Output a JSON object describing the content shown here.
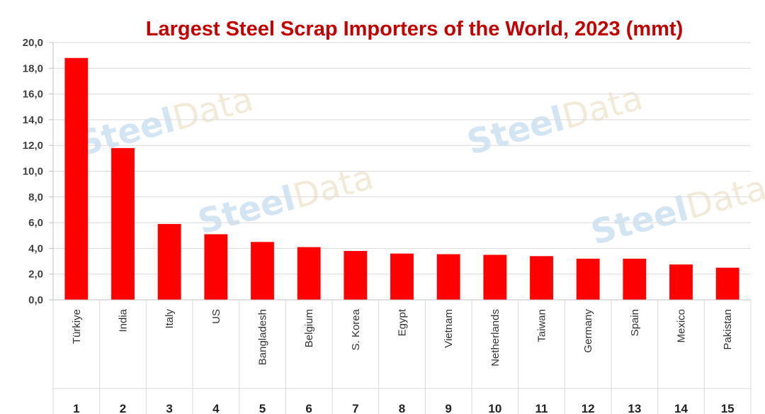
{
  "chart_data": {
    "type": "bar",
    "title": "Largest Steel Scrap Importers of the World, 2023 (mmt)",
    "categories": [
      "Türkiye",
      "India",
      "Italy",
      "US",
      "Bangladesh",
      "Belgium",
      "S. Korea",
      "Egypt",
      "Vietnam",
      "Netherlands",
      "Taiwan",
      "Germany",
      "Spain",
      "Mexico",
      "Pakistan"
    ],
    "ranks": [
      "1",
      "2",
      "3",
      "4",
      "5",
      "6",
      "7",
      "8",
      "9",
      "10",
      "11",
      "12",
      "13",
      "14",
      "15"
    ],
    "values": [
      18.8,
      11.8,
      5.9,
      5.1,
      4.5,
      4.1,
      3.8,
      3.6,
      3.55,
      3.5,
      3.4,
      3.2,
      3.2,
      2.75,
      2.5
    ],
    "ylim": [
      0,
      20
    ],
    "yticks": [
      "0,0",
      "2,0",
      "4,0",
      "6,0",
      "8,0",
      "10,0",
      "12,0",
      "14,0",
      "16,0",
      "18,0",
      "20,0"
    ],
    "ytick_values": [
      0,
      2,
      4,
      6,
      8,
      10,
      12,
      14,
      16,
      18,
      20
    ],
    "xlabel": "",
    "ylabel": "",
    "grid": true,
    "bar_color": "#ff0000",
    "title_color": "#c00000"
  },
  "watermark": {
    "brand_a": "Steel",
    "brand_b": "Data"
  }
}
